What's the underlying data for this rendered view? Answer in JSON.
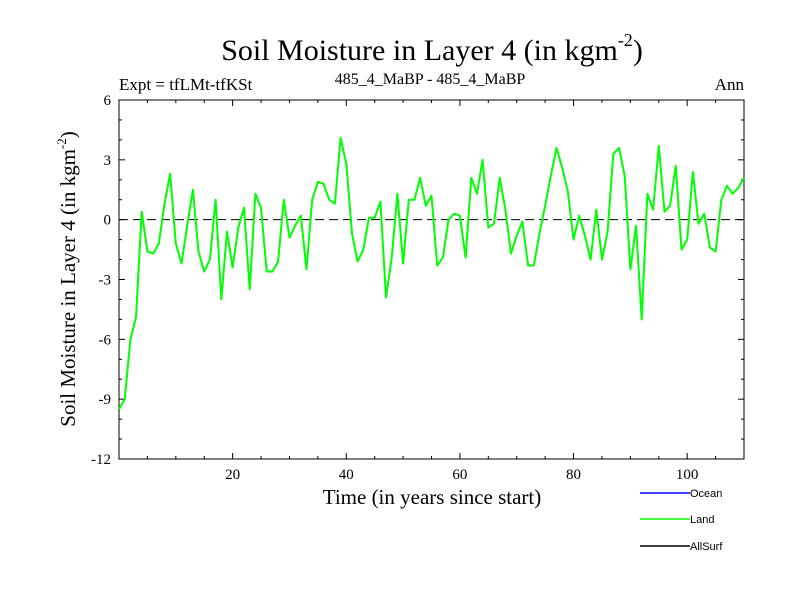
{
  "chart_data": {
    "type": "line",
    "title_main": "Soil Moisture in Layer 4 (in kgm",
    "title_sup": "-2",
    "title_close": ")",
    "subtitle_left": "Expt = tfLMt-tfKSt",
    "subtitle_center": "485_4_MaBP - 485_4_MaBP",
    "subtitle_right": "Ann",
    "xlabel": "Time (in years since start)",
    "ylabel_main": "Soil Moisture in Layer 4 (in kgm",
    "ylabel_sup": "-2",
    "ylabel_close": ")",
    "xlim": [
      0,
      110
    ],
    "ylim": [
      -12,
      6
    ],
    "xticks": [
      20,
      40,
      60,
      80,
      100
    ],
    "xtick_labels": [
      "20",
      "40",
      "60",
      "80",
      "100"
    ],
    "yticks": [
      6,
      3,
      0,
      -3,
      -6,
      -9,
      -12
    ],
    "ytick_labels": [
      "6",
      "3",
      "0",
      "-3",
      "-6",
      "-9",
      "-12"
    ],
    "zero_line": 0,
    "colors": {
      "ocean": "#0000ff",
      "land": "#00ff00",
      "allsurf": "#000000"
    },
    "legend": [
      {
        "name": "Ocean",
        "color": "#0000ff"
      },
      {
        "name": "Land",
        "color": "#00ff00"
      },
      {
        "name": "AllSurf",
        "color": "#000000"
      }
    ],
    "series": [
      {
        "name": "Land",
        "color": "#00ff00",
        "x": [
          0,
          1,
          2,
          3,
          4,
          5,
          6,
          7,
          8,
          9,
          10,
          11,
          12,
          13,
          14,
          15,
          16,
          17,
          18,
          19,
          20,
          21,
          22,
          23,
          24,
          25,
          26,
          27,
          28,
          29,
          30,
          31,
          32,
          33,
          34,
          35,
          36,
          37,
          38,
          39,
          40,
          41,
          42,
          43,
          44,
          45,
          46,
          47,
          48,
          49,
          50,
          51,
          52,
          53,
          54,
          55,
          56,
          57,
          58,
          59,
          60,
          61,
          62,
          63,
          64,
          65,
          66,
          67,
          68,
          69,
          70,
          71,
          72,
          73,
          74,
          75,
          76,
          77,
          78,
          79,
          80,
          81,
          82,
          83,
          84,
          85,
          86,
          87,
          88,
          89,
          90,
          91,
          92,
          93,
          94,
          95,
          96,
          97,
          98,
          99,
          100,
          101,
          102,
          103,
          104,
          105,
          106,
          107,
          108,
          109,
          110
        ],
        "values": [
          -9.5,
          -9.0,
          -6.0,
          -4.9,
          0.4,
          -1.6,
          -1.7,
          -1.2,
          0.8,
          2.3,
          -1.2,
          -2.2,
          -0.3,
          1.5,
          -1.6,
          -2.6,
          -2.0,
          1.0,
          -4.0,
          -0.6,
          -2.4,
          -0.4,
          0.6,
          -3.5,
          1.3,
          0.6,
          -2.6,
          -2.6,
          -2.1,
          1.0,
          -0.9,
          -0.3,
          0.2,
          -2.5,
          1.0,
          1.9,
          1.8,
          1.0,
          0.8,
          4.1,
          2.8,
          -0.7,
          -2.1,
          -1.5,
          0.1,
          0.1,
          0.9,
          -3.9,
          -1.9,
          1.3,
          -2.2,
          1.0,
          1.0,
          2.1,
          0.7,
          1.2,
          -2.3,
          -1.9,
          0.0,
          0.3,
          0.2,
          -1.9,
          2.1,
          1.3,
          3.0,
          -0.4,
          -0.2,
          2.1,
          0.5,
          -1.7,
          -0.8,
          -0.1,
          -2.3,
          -2.3,
          -0.7,
          0.7,
          2.2,
          3.6,
          2.6,
          1.4,
          -1.0,
          0.2,
          -0.8,
          -2.0,
          0.5,
          -2.0,
          -0.6,
          3.3,
          3.6,
          2.2,
          -2.5,
          -0.3,
          -5.0,
          1.3,
          0.5,
          3.7,
          0.4,
          0.7,
          2.7,
          -1.5,
          -1.0,
          2.4,
          -0.2,
          0.3,
          -1.4,
          -1.6,
          1.0,
          1.7,
          1.3,
          1.6,
          2.1
        ]
      }
    ]
  }
}
